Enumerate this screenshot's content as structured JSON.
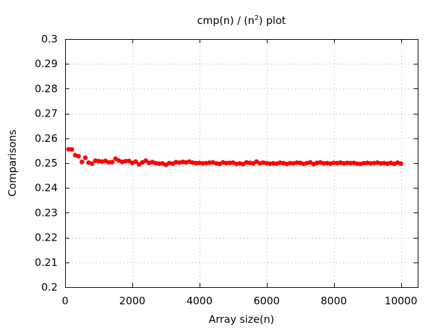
{
  "chart_data": {
    "type": "scatter",
    "title": {
      "prefix": "cmp(n) / (n",
      "superscript": "2",
      "suffix": ") plot"
    },
    "xlabel": "Array size(n)",
    "ylabel": "Comparisons",
    "xlim": [
      0,
      10500
    ],
    "ylim": [
      0.2,
      0.3
    ],
    "xticks": [
      0,
      2000,
      4000,
      6000,
      8000,
      10000
    ],
    "xtick_labels": [
      "0",
      "2000",
      "4000",
      "6000",
      "8000",
      "10000"
    ],
    "yticks": [
      0.2,
      0.21,
      0.22,
      0.23,
      0.24,
      0.25,
      0.26,
      0.27,
      0.28,
      0.29,
      0.3
    ],
    "ytick_labels": [
      "0.2",
      "0.21",
      "0.22",
      "0.23",
      "0.24",
      "0.25",
      "0.26",
      "0.27",
      "0.28",
      "0.29",
      "0.3"
    ],
    "grid": true,
    "marker_color": "#ff0000",
    "x": [
      100,
      200,
      300,
      400,
      500,
      600,
      700,
      800,
      900,
      1000,
      1100,
      1200,
      1300,
      1400,
      1500,
      1600,
      1700,
      1800,
      1900,
      2000,
      2100,
      2200,
      2300,
      2400,
      2500,
      2600,
      2700,
      2800,
      2900,
      3000,
      3100,
      3200,
      3300,
      3400,
      3500,
      3600,
      3700,
      3800,
      3900,
      4000,
      4100,
      4200,
      4300,
      4400,
      4500,
      4600,
      4700,
      4800,
      4900,
      5000,
      5100,
      5200,
      5300,
      5400,
      5500,
      5600,
      5700,
      5800,
      5900,
      6000,
      6100,
      6200,
      6300,
      6400,
      6500,
      6600,
      6700,
      6800,
      6900,
      7000,
      7100,
      7200,
      7300,
      7400,
      7500,
      7600,
      7700,
      7800,
      7900,
      8000,
      8100,
      8200,
      8300,
      8400,
      8500,
      8600,
      8700,
      8800,
      8900,
      9000,
      9100,
      9200,
      9300,
      9400,
      9500,
      9600,
      9700,
      9800,
      9900,
      10000
    ],
    "y": [
      0.2556,
      0.2555,
      0.2532,
      0.2528,
      0.2505,
      0.2522,
      0.2502,
      0.2498,
      0.251,
      0.2508,
      0.2506,
      0.2509,
      0.2503,
      0.2504,
      0.2518,
      0.251,
      0.2505,
      0.2508,
      0.2509,
      0.2501,
      0.2506,
      0.2495,
      0.2503,
      0.251,
      0.2501,
      0.2504,
      0.25,
      0.2498,
      0.2499,
      0.2493,
      0.25,
      0.2498,
      0.2504,
      0.2502,
      0.2505,
      0.2503,
      0.2506,
      0.2502,
      0.25,
      0.2501,
      0.2499,
      0.25,
      0.2502,
      0.2503,
      0.2499,
      0.2497,
      0.2503,
      0.25,
      0.2501,
      0.2502,
      0.2497,
      0.2499,
      0.2496,
      0.2503,
      0.2501,
      0.2499,
      0.2506,
      0.2499,
      0.2502,
      0.25,
      0.2498,
      0.2499,
      0.2498,
      0.2502,
      0.25,
      0.2497,
      0.25,
      0.2499,
      0.2502,
      0.2501,
      0.2497,
      0.25,
      0.2503,
      0.2496,
      0.2501,
      0.2503,
      0.2499,
      0.25,
      0.2498,
      0.2501,
      0.25,
      0.2502,
      0.2499,
      0.2501,
      0.25,
      0.2501,
      0.2498,
      0.2497,
      0.25,
      0.2501,
      0.2499,
      0.25,
      0.2502,
      0.2499,
      0.25,
      0.2498,
      0.2501,
      0.2497,
      0.2502,
      0.2498
    ]
  }
}
